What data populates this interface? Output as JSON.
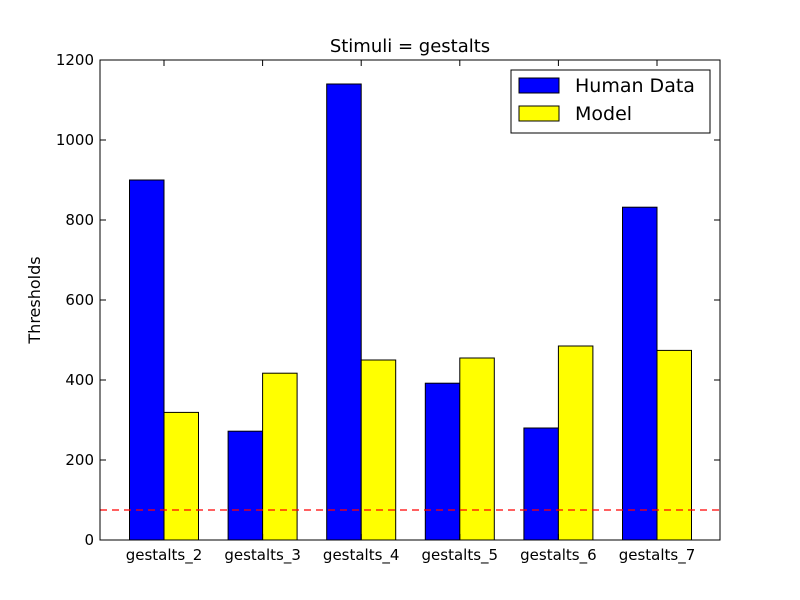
{
  "chart_data": {
    "type": "bar",
    "title": "Stimuli = gestalts",
    "xlabel": "",
    "ylabel": "Thresholds",
    "categories": [
      "gestalts_2",
      "gestalts_3",
      "gestalts_4",
      "gestalts_5",
      "gestalts_6",
      "gestalts_7"
    ],
    "series": [
      {
        "name": "Human Data",
        "color": "#0000ff",
        "values": [
          900,
          272,
          1140,
          392,
          280,
          832
        ]
      },
      {
        "name": "Model",
        "color": "#ffff00",
        "values": [
          319,
          417,
          450,
          455,
          485,
          474
        ]
      }
    ],
    "ylim": [
      0,
      1200
    ],
    "yticks": [
      0,
      200,
      400,
      600,
      800,
      1000,
      1200
    ],
    "reference_line": {
      "y": 75,
      "color": "#ff0000",
      "style": "dashed"
    },
    "legend_position": "top-right",
    "grid": false
  }
}
